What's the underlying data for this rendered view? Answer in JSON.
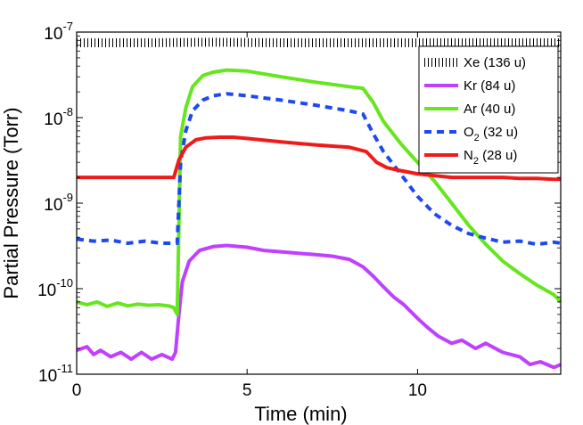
{
  "chart_data": {
    "type": "line",
    "xlabel": "Time (min)",
    "ylabel": "Partial Pressure (Torr)",
    "yscale": "log",
    "xlim": [
      0,
      14.2
    ],
    "ylim": [
      1e-11,
      1e-07
    ],
    "x_ticks": [
      0,
      5,
      10
    ],
    "x_tick_labels": [
      "0",
      "5",
      "10"
    ],
    "y_ticks": [
      {
        "base": "10",
        "exp": "-11",
        "value": 1e-11
      },
      {
        "base": "10",
        "exp": "-10",
        "value": 1e-10
      },
      {
        "base": "10",
        "exp": "-9",
        "value": 1e-09
      },
      {
        "base": "10",
        "exp": "-8",
        "value": 1e-08
      },
      {
        "base": "10",
        "exp": "-7",
        "value": 1e-07
      }
    ],
    "legend_position": "top-right",
    "series": [
      {
        "name": "Xe (136 u)",
        "label_main": "Xe (136 u)",
        "color": "#000000",
        "style": "dotted",
        "x": [
          0,
          2,
          4,
          6,
          8,
          10,
          12,
          14.2
        ],
        "values": [
          7.5e-08,
          7.5e-08,
          7.6e-08,
          7.5e-08,
          7.5e-08,
          7.5e-08,
          7.5e-08,
          7.5e-08
        ]
      },
      {
        "name": "Kr (84 u)",
        "label_main": "Kr (84 u)",
        "color": "#c040ff",
        "style": "solid",
        "x": [
          0,
          0.3,
          0.5,
          0.7,
          1.0,
          1.3,
          1.6,
          1.9,
          2.2,
          2.5,
          2.8,
          2.9,
          3.0,
          3.1,
          3.3,
          3.6,
          4.0,
          4.4,
          5.0,
          5.5,
          6.0,
          6.5,
          7.0,
          7.5,
          8.0,
          8.4,
          8.7,
          9.0,
          9.3,
          9.6,
          10.0,
          10.3,
          10.6,
          11.0,
          11.3,
          11.7,
          12.0,
          12.5,
          13.0,
          13.3,
          13.6,
          14.0,
          14.2
        ],
        "values": [
          1.9e-11,
          2.1e-11,
          1.7e-11,
          1.9e-11,
          1.6e-11,
          1.8e-11,
          1.5e-11,
          1.8e-11,
          1.5e-11,
          1.7e-11,
          1.5e-11,
          1.8e-11,
          5e-11,
          1.2e-10,
          2.1e-10,
          2.8e-10,
          3.1e-10,
          3.2e-10,
          3.05e-10,
          2.8e-10,
          2.7e-10,
          2.6e-10,
          2.5e-10,
          2.4e-10,
          2.2e-10,
          1.8e-10,
          1.4e-10,
          1.05e-10,
          8e-11,
          6.5e-11,
          4.5e-11,
          3.5e-11,
          2.8e-11,
          2.3e-11,
          2.5e-11,
          2e-11,
          2.3e-11,
          1.8e-11,
          1.6e-11,
          1.3e-11,
          1.4e-11,
          1.2e-11,
          1.3e-11
        ]
      },
      {
        "name": "Ar (40 u)",
        "label_main": "Ar (40 u)",
        "color": "#66e61e",
        "style": "solid",
        "x": [
          0,
          0.3,
          0.6,
          0.9,
          1.2,
          1.5,
          1.8,
          2.1,
          2.4,
          2.7,
          2.85,
          2.95,
          3.05,
          3.2,
          3.4,
          3.7,
          4.0,
          4.4,
          5.0,
          6.0,
          7.0,
          8.0,
          8.4,
          8.7,
          9.0,
          9.5,
          10.0,
          10.5,
          11.0,
          11.5,
          12.0,
          12.5,
          13.0,
          13.5,
          14.0,
          14.2
        ],
        "values": [
          7e-11,
          6.5e-11,
          7e-11,
          6.2e-11,
          6.8e-11,
          6.3e-11,
          6.6e-11,
          6.4e-11,
          6.5e-11,
          6.3e-11,
          6e-11,
          5e-11,
          6e-09,
          1.3e-08,
          2.3e-08,
          3.1e-08,
          3.4e-08,
          3.6e-08,
          3.5e-08,
          3e-08,
          2.6e-08,
          2.3e-08,
          2.2e-08,
          1.5e-08,
          9e-09,
          5e-09,
          3e-09,
          1.8e-09,
          1e-09,
          5.5e-10,
          3.3e-10,
          2.1e-10,
          1.5e-10,
          1.1e-10,
          8.5e-11,
          7e-11
        ]
      },
      {
        "name": "O2 (32 u)",
        "label_main": "O",
        "label_sub": "2",
        "label_tail": " (32 u)",
        "color": "#1f49f0",
        "style": "dashed",
        "x": [
          0,
          0.5,
          1.0,
          1.5,
          2.0,
          2.5,
          2.85,
          2.95,
          3.05,
          3.2,
          3.4,
          3.7,
          4.0,
          4.4,
          5.0,
          6.0,
          7.0,
          8.0,
          8.4,
          8.7,
          9.0,
          9.5,
          10.0,
          10.5,
          11.0,
          11.5,
          12.0,
          12.5,
          13.0,
          13.5,
          14.0,
          14.2
        ],
        "values": [
          3.8e-10,
          3.6e-10,
          3.7e-10,
          3.4e-10,
          3.6e-10,
          3.4e-10,
          3.4e-10,
          3.4e-10,
          3e-09,
          7e-09,
          1.2e-08,
          1.6e-08,
          1.8e-08,
          1.9e-08,
          1.8e-08,
          1.6e-08,
          1.4e-08,
          1.2e-08,
          1.1e-08,
          6.5e-09,
          4e-09,
          2.2e-09,
          1.2e-09,
          7.5e-10,
          5.5e-10,
          4.4e-10,
          3.9e-10,
          3.5e-10,
          3.6e-10,
          3.3e-10,
          3.5e-10,
          3.4e-10
        ]
      },
      {
        "name": "N2 (28 u)",
        "label_main": "N",
        "label_sub": "2",
        "label_tail": " (28 u)",
        "color": "#f01a1a",
        "style": "solid",
        "x": [
          0,
          0.5,
          1.0,
          1.5,
          2.0,
          2.5,
          2.85,
          3.0,
          3.2,
          3.5,
          3.8,
          4.2,
          4.6,
          5.0,
          6.0,
          7.0,
          8.0,
          8.5,
          8.8,
          9.1,
          9.5,
          10.0,
          10.5,
          11.0,
          11.5,
          12.0,
          12.5,
          13.0,
          13.5,
          14.0,
          14.2
        ],
        "values": [
          2e-09,
          2e-09,
          2e-09,
          2e-09,
          2e-09,
          2e-09,
          2e-09,
          3.2e-09,
          4.5e-09,
          5.5e-09,
          5.8e-09,
          5.9e-09,
          5.9e-09,
          5.7e-09,
          5.2e-09,
          4.8e-09,
          4.5e-09,
          4e-09,
          3e-09,
          2.6e-09,
          2.4e-09,
          2.2e-09,
          2.1e-09,
          2e-09,
          2e-09,
          2e-09,
          2e-09,
          1.95e-09,
          1.95e-09,
          1.9e-09,
          1.9e-09
        ]
      }
    ]
  }
}
